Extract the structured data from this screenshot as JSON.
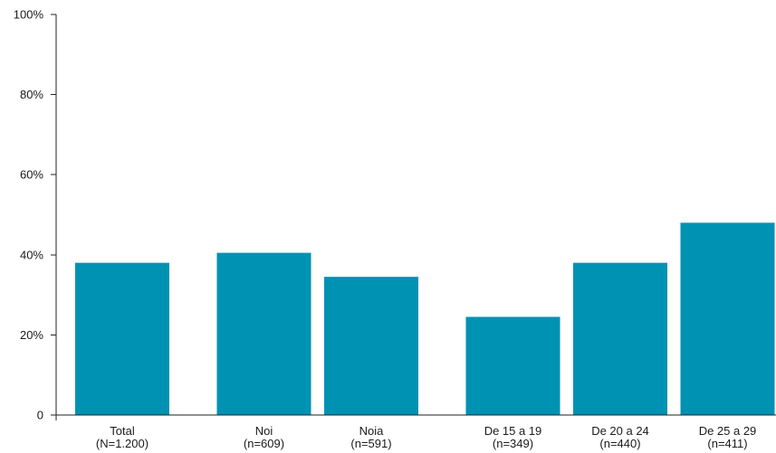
{
  "chart_data": {
    "type": "bar",
    "title": "",
    "xlabel": "",
    "ylabel": "",
    "categories": [
      [
        "Total",
        "(N=1.200)"
      ],
      [
        "Noi",
        "(n=609)"
      ],
      [
        "Noia",
        "(n=591)"
      ],
      [
        "De 15 a 19",
        "(n=349)"
      ],
      [
        "De 20 a 24",
        "(n=440)"
      ],
      [
        "De 25 a 29",
        "(n=411)"
      ]
    ],
    "groups": [
      [
        0
      ],
      [
        1,
        2
      ],
      [
        3,
        4,
        5
      ]
    ],
    "values": [
      38,
      40.5,
      34.5,
      24.5,
      38,
      48
    ],
    "ylim": [
      0,
      100
    ],
    "yticks": [
      0,
      20,
      40,
      60,
      80,
      100
    ],
    "ytick_labels": [
      "0",
      "20%",
      "40%",
      "60%",
      "80%",
      "100%"
    ],
    "bar_color": "#0092b2",
    "axis_color": "#222222",
    "grid": false,
    "legend": "none"
  }
}
